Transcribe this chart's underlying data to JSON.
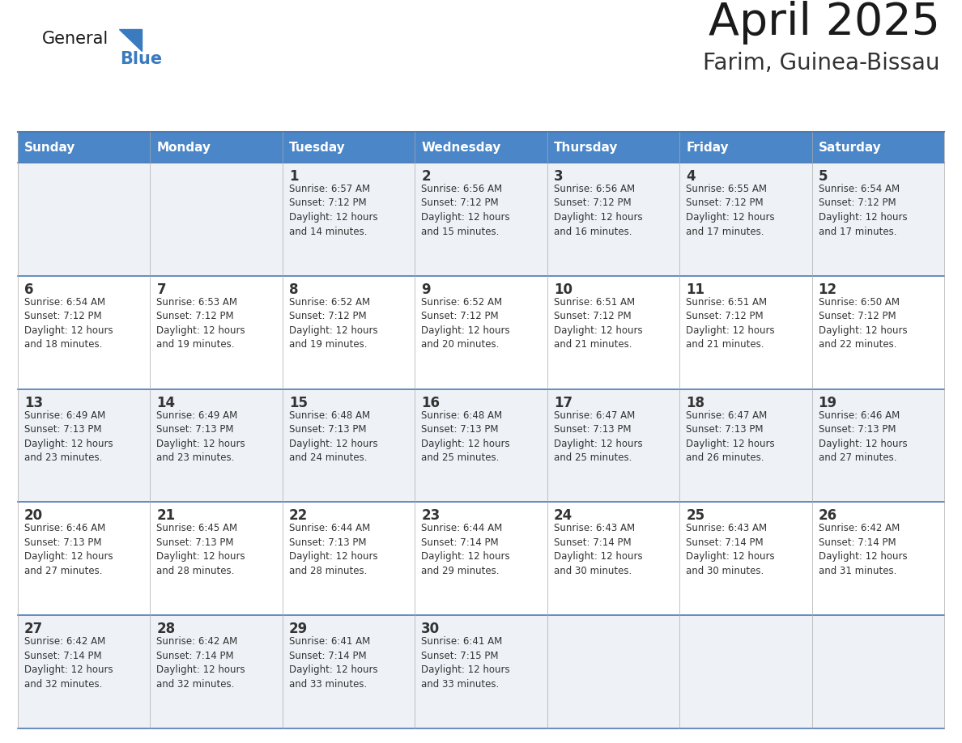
{
  "title": "April 2025",
  "subtitle": "Farim, Guinea-Bissau",
  "days_of_week": [
    "Sunday",
    "Monday",
    "Tuesday",
    "Wednesday",
    "Thursday",
    "Friday",
    "Saturday"
  ],
  "header_bg": "#4a86c8",
  "header_text": "#ffffff",
  "cell_bg_odd": "#eef2f7",
  "cell_bg_even": "#ffffff",
  "separator_color": "#4a7ab5",
  "text_color": "#333333",
  "logo_general_color": "#1a1a1a",
  "logo_blue_color": "#3a7abf",
  "title_color": "#1a1a1a",
  "subtitle_color": "#333333",
  "calendar_data": [
    [
      {
        "day": "",
        "info": ""
      },
      {
        "day": "",
        "info": ""
      },
      {
        "day": "1",
        "info": "Sunrise: 6:57 AM\nSunset: 7:12 PM\nDaylight: 12 hours\nand 14 minutes."
      },
      {
        "day": "2",
        "info": "Sunrise: 6:56 AM\nSunset: 7:12 PM\nDaylight: 12 hours\nand 15 minutes."
      },
      {
        "day": "3",
        "info": "Sunrise: 6:56 AM\nSunset: 7:12 PM\nDaylight: 12 hours\nand 16 minutes."
      },
      {
        "day": "4",
        "info": "Sunrise: 6:55 AM\nSunset: 7:12 PM\nDaylight: 12 hours\nand 17 minutes."
      },
      {
        "day": "5",
        "info": "Sunrise: 6:54 AM\nSunset: 7:12 PM\nDaylight: 12 hours\nand 17 minutes."
      }
    ],
    [
      {
        "day": "6",
        "info": "Sunrise: 6:54 AM\nSunset: 7:12 PM\nDaylight: 12 hours\nand 18 minutes."
      },
      {
        "day": "7",
        "info": "Sunrise: 6:53 AM\nSunset: 7:12 PM\nDaylight: 12 hours\nand 19 minutes."
      },
      {
        "day": "8",
        "info": "Sunrise: 6:52 AM\nSunset: 7:12 PM\nDaylight: 12 hours\nand 19 minutes."
      },
      {
        "day": "9",
        "info": "Sunrise: 6:52 AM\nSunset: 7:12 PM\nDaylight: 12 hours\nand 20 minutes."
      },
      {
        "day": "10",
        "info": "Sunrise: 6:51 AM\nSunset: 7:12 PM\nDaylight: 12 hours\nand 21 minutes."
      },
      {
        "day": "11",
        "info": "Sunrise: 6:51 AM\nSunset: 7:12 PM\nDaylight: 12 hours\nand 21 minutes."
      },
      {
        "day": "12",
        "info": "Sunrise: 6:50 AM\nSunset: 7:12 PM\nDaylight: 12 hours\nand 22 minutes."
      }
    ],
    [
      {
        "day": "13",
        "info": "Sunrise: 6:49 AM\nSunset: 7:13 PM\nDaylight: 12 hours\nand 23 minutes."
      },
      {
        "day": "14",
        "info": "Sunrise: 6:49 AM\nSunset: 7:13 PM\nDaylight: 12 hours\nand 23 minutes."
      },
      {
        "day": "15",
        "info": "Sunrise: 6:48 AM\nSunset: 7:13 PM\nDaylight: 12 hours\nand 24 minutes."
      },
      {
        "day": "16",
        "info": "Sunrise: 6:48 AM\nSunset: 7:13 PM\nDaylight: 12 hours\nand 25 minutes."
      },
      {
        "day": "17",
        "info": "Sunrise: 6:47 AM\nSunset: 7:13 PM\nDaylight: 12 hours\nand 25 minutes."
      },
      {
        "day": "18",
        "info": "Sunrise: 6:47 AM\nSunset: 7:13 PM\nDaylight: 12 hours\nand 26 minutes."
      },
      {
        "day": "19",
        "info": "Sunrise: 6:46 AM\nSunset: 7:13 PM\nDaylight: 12 hours\nand 27 minutes."
      }
    ],
    [
      {
        "day": "20",
        "info": "Sunrise: 6:46 AM\nSunset: 7:13 PM\nDaylight: 12 hours\nand 27 minutes."
      },
      {
        "day": "21",
        "info": "Sunrise: 6:45 AM\nSunset: 7:13 PM\nDaylight: 12 hours\nand 28 minutes."
      },
      {
        "day": "22",
        "info": "Sunrise: 6:44 AM\nSunset: 7:13 PM\nDaylight: 12 hours\nand 28 minutes."
      },
      {
        "day": "23",
        "info": "Sunrise: 6:44 AM\nSunset: 7:14 PM\nDaylight: 12 hours\nand 29 minutes."
      },
      {
        "day": "24",
        "info": "Sunrise: 6:43 AM\nSunset: 7:14 PM\nDaylight: 12 hours\nand 30 minutes."
      },
      {
        "day": "25",
        "info": "Sunrise: 6:43 AM\nSunset: 7:14 PM\nDaylight: 12 hours\nand 30 minutes."
      },
      {
        "day": "26",
        "info": "Sunrise: 6:42 AM\nSunset: 7:14 PM\nDaylight: 12 hours\nand 31 minutes."
      }
    ],
    [
      {
        "day": "27",
        "info": "Sunrise: 6:42 AM\nSunset: 7:14 PM\nDaylight: 12 hours\nand 32 minutes."
      },
      {
        "day": "28",
        "info": "Sunrise: 6:42 AM\nSunset: 7:14 PM\nDaylight: 12 hours\nand 32 minutes."
      },
      {
        "day": "29",
        "info": "Sunrise: 6:41 AM\nSunset: 7:14 PM\nDaylight: 12 hours\nand 33 minutes."
      },
      {
        "day": "30",
        "info": "Sunrise: 6:41 AM\nSunset: 7:15 PM\nDaylight: 12 hours\nand 33 minutes."
      },
      {
        "day": "",
        "info": ""
      },
      {
        "day": "",
        "info": ""
      },
      {
        "day": "",
        "info": ""
      }
    ]
  ]
}
